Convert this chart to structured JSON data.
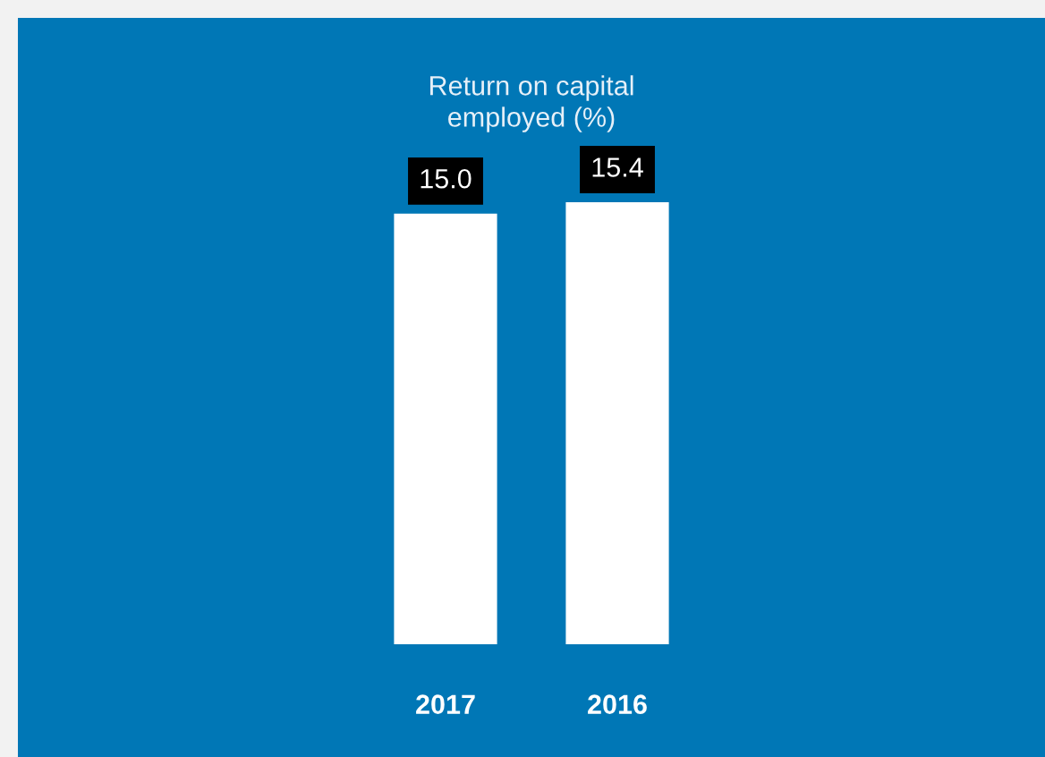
{
  "chart_data": {
    "type": "bar",
    "title": "Return on capital\nemployed (%)",
    "categories": [
      "2017",
      "2016"
    ],
    "series": [
      {
        "color": "#ffffff",
        "values": [
          15.0,
          15.4
        ],
        "value_labels": [
          "15.0",
          "15.4"
        ]
      }
    ]
  }
}
